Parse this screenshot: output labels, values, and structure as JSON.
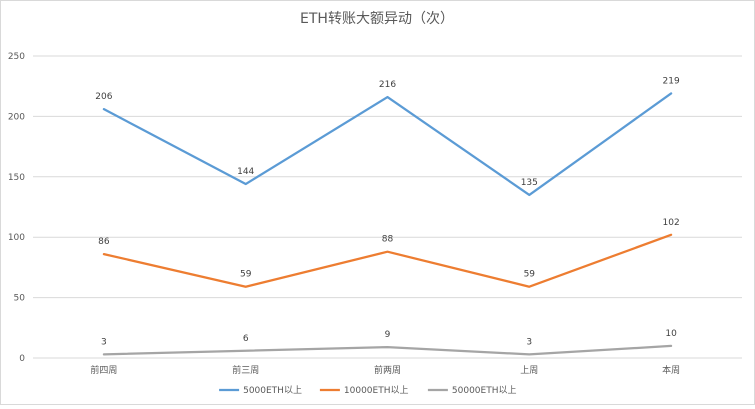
{
  "chart_data": {
    "type": "line",
    "title": "ETH转账大额异动（次）",
    "xlabel": "",
    "ylabel": "",
    "categories": [
      "前四周",
      "前三周",
      "前两周",
      "上周",
      "本周"
    ],
    "ylim": [
      0,
      250
    ],
    "yticks": [
      0,
      50,
      100,
      150,
      200,
      250
    ],
    "grid": true,
    "legend_position": "bottom",
    "series": [
      {
        "name": "5000ETH以上",
        "values": [
          206,
          144,
          216,
          135,
          219
        ],
        "color": "#5b9bd5"
      },
      {
        "name": "10000ETH以上",
        "values": [
          86,
          59,
          88,
          59,
          102
        ],
        "color": "#ed7d31"
      },
      {
        "name": "50000ETH以上",
        "values": [
          3,
          6,
          9,
          3,
          10
        ],
        "color": "#a5a5a5"
      }
    ]
  }
}
